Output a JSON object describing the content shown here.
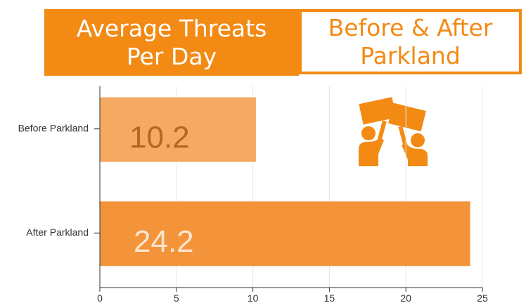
{
  "chart_data": {
    "type": "bar",
    "orientation": "horizontal",
    "title": "Average Threats Per Day",
    "subtitle": "Before & After Parkland",
    "categories": [
      "Before Parkland",
      "After Parkland"
    ],
    "values": [
      10.2,
      24.2
    ],
    "colors": [
      "#f5a963",
      "#f3933a"
    ],
    "label_colors": [
      "#b8661c",
      "#fde6cf"
    ],
    "xlim": [
      0,
      25
    ],
    "xticks": [
      0,
      5,
      10,
      15,
      20,
      25
    ],
    "grid": true
  }
}
